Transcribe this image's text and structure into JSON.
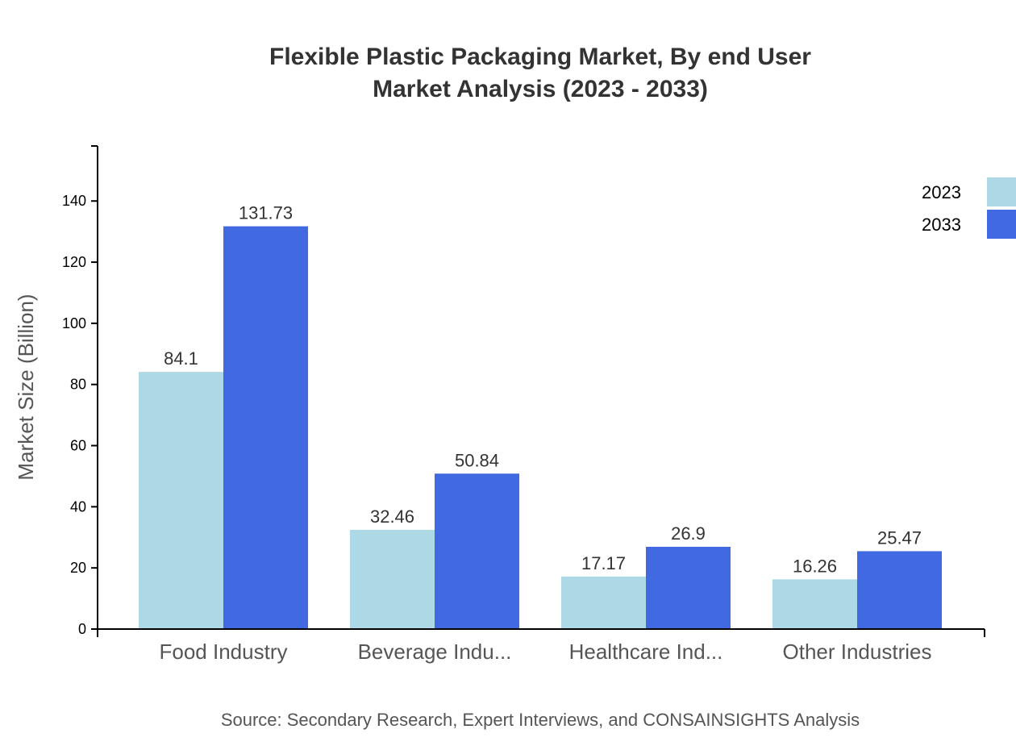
{
  "chart_data": {
    "type": "bar",
    "title": [
      "Flexible Plastic Packaging Market, By end User",
      "Market Analysis (2023 - 2033)"
    ],
    "xlabel": "",
    "ylabel": "Market Size (Billion)",
    "ylim": [
      0,
      158
    ],
    "yticks": [
      0,
      20,
      40,
      60,
      80,
      100,
      120,
      140
    ],
    "categories": [
      "Food Industry",
      "Beverage Indu...",
      "Healthcare Ind...",
      "Other Industries"
    ],
    "series": [
      {
        "name": "2023",
        "color": "#add8e6",
        "values": [
          84.1,
          32.46,
          17.17,
          16.26
        ]
      },
      {
        "name": "2033",
        "color": "#4169e1",
        "values": [
          131.73,
          50.84,
          26.9,
          25.47
        ]
      }
    ],
    "legend_position": "top-right",
    "grid": false,
    "source": "Source: Secondary Research, Expert Interviews, and CONSAINSIGHTS Analysis"
  }
}
